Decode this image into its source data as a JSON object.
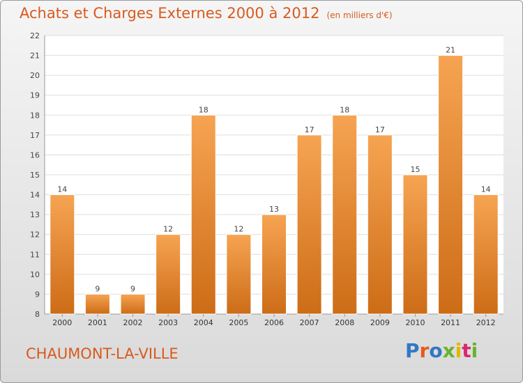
{
  "header": {
    "title": "Achats et Charges Externes 2000 à 2012",
    "subtitle": "(en milliers d'€)"
  },
  "footer": {
    "place": "CHAUMONT-LA-VILLE",
    "logo": "Proxiti",
    "logo_colors": [
      "#2f79c3",
      "#e85a16",
      "#2f79c3",
      "#69b32f",
      "#e8b400",
      "#d82a6a",
      "#69b32f"
    ]
  },
  "colors": {
    "title": "#d85a1e",
    "bar_light": "#f6a452",
    "bar_dark": "#cd6c17",
    "grid": "#dddddd"
  },
  "chart_data": {
    "type": "bar",
    "title": "Achats et Charges Externes 2000 à 2012",
    "subtitle": "(en milliers d'€)",
    "categories": [
      "2000",
      "2001",
      "2002",
      "2003",
      "2004",
      "2005",
      "2006",
      "2007",
      "2008",
      "2009",
      "2010",
      "2011",
      "2012"
    ],
    "values": [
      14,
      9,
      9,
      12,
      18,
      12,
      13,
      17,
      18,
      17,
      15,
      21,
      14
    ],
    "ylim": [
      8,
      22
    ],
    "yticks": [
      8,
      9,
      10,
      11,
      12,
      13,
      14,
      15,
      16,
      17,
      18,
      19,
      20,
      21,
      22
    ],
    "grid": true,
    "data_labels": true
  }
}
